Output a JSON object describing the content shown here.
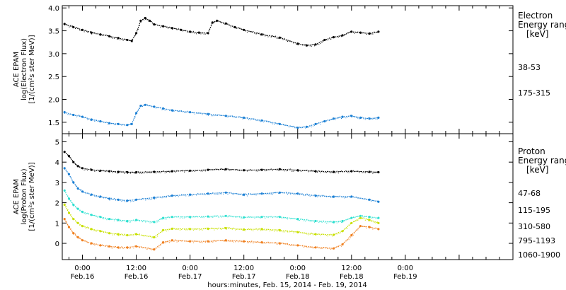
{
  "figure": {
    "xlabel": "hours:minutes, Feb. 15, 2014 - Feb. 19, 2014"
  },
  "chart_data": [
    {
      "type": "scatter",
      "panel": "electron",
      "ylabel_lines": [
        "ACE EPAM",
        "log(Electron Flux)",
        "[1/(cm²s ster MeV)]"
      ],
      "legend_title_lines": [
        "Electron",
        "Energy ranges"
      ],
      "legend_unit": "[keV]",
      "ylim": [
        1.25,
        4.05
      ],
      "yticks": [
        1.5,
        2.0,
        2.5,
        3.0,
        3.5,
        4.0
      ],
      "ytick_labels": [
        "1.5",
        "2.0",
        "2.5",
        "3.0",
        "3.5",
        "4.0"
      ],
      "xlim_hours": [
        -4.5,
        96
      ],
      "x_ticks": [
        {
          "hours": 0,
          "time": "0:00",
          "date": "Feb.16"
        },
        {
          "hours": 12,
          "time": "12:00",
          "date": "Feb.16"
        },
        {
          "hours": 24,
          "time": "0:00",
          "date": "Feb.17"
        },
        {
          "hours": 36,
          "time": "12:00",
          "date": "Feb.17"
        },
        {
          "hours": 48,
          "time": "0:00",
          "date": "Feb.18"
        },
        {
          "hours": 60,
          "time": "12:00",
          "date": "Feb.18"
        },
        {
          "hours": 72,
          "time": "0:00",
          "date": "Feb.19"
        }
      ],
      "series": [
        {
          "name": "38-53",
          "color": "#000000",
          "x": [
            -4,
            -2,
            0,
            2,
            4,
            6,
            8,
            10,
            11,
            12,
            13,
            14,
            15,
            16,
            18,
            20,
            22,
            24,
            26,
            28,
            29,
            30,
            32,
            34,
            36,
            40,
            44,
            48,
            50,
            52,
            54,
            56,
            58,
            60,
            62,
            64,
            66
          ],
          "y": [
            3.65,
            3.58,
            3.52,
            3.46,
            3.42,
            3.38,
            3.34,
            3.3,
            3.28,
            3.45,
            3.72,
            3.78,
            3.72,
            3.64,
            3.6,
            3.56,
            3.52,
            3.48,
            3.46,
            3.45,
            3.68,
            3.72,
            3.66,
            3.58,
            3.52,
            3.42,
            3.35,
            3.22,
            3.18,
            3.2,
            3.3,
            3.36,
            3.4,
            3.48,
            3.46,
            3.44,
            3.48
          ]
        },
        {
          "name": "175-315",
          "color": "#1a7fd4",
          "x": [
            -4,
            -2,
            0,
            2,
            4,
            6,
            8,
            10,
            11,
            12,
            13,
            14,
            16,
            18,
            20,
            24,
            28,
            32,
            36,
            40,
            44,
            48,
            50,
            52,
            54,
            56,
            58,
            60,
            62,
            64,
            66
          ],
          "y": [
            1.72,
            1.66,
            1.62,
            1.56,
            1.52,
            1.48,
            1.46,
            1.44,
            1.46,
            1.7,
            1.86,
            1.88,
            1.84,
            1.8,
            1.76,
            1.72,
            1.68,
            1.64,
            1.6,
            1.54,
            1.46,
            1.38,
            1.4,
            1.46,
            1.52,
            1.58,
            1.62,
            1.64,
            1.6,
            1.58,
            1.6
          ]
        }
      ]
    },
    {
      "type": "scatter",
      "panel": "proton",
      "ylabel_lines": [
        "ACE EPAM",
        "log(Proton Flux)",
        "[1/(cm²s ster MeV)]"
      ],
      "legend_title_lines": [
        "Proton",
        "Energy ranges"
      ],
      "legend_unit": "[keV]",
      "ylim": [
        -0.8,
        5.4
      ],
      "yticks": [
        0,
        1,
        2,
        3,
        4,
        5
      ],
      "ytick_labels": [
        "0",
        "1",
        "2",
        "3",
        "4",
        "5"
      ],
      "xlim_hours": [
        -4.5,
        96
      ],
      "series": [
        {
          "name": "47-68",
          "color": "#000000",
          "x": [
            -4,
            -3,
            -2,
            -1,
            0,
            2,
            4,
            6,
            8,
            10,
            12,
            16,
            20,
            24,
            28,
            32,
            36,
            40,
            44,
            48,
            52,
            56,
            60,
            64,
            66
          ],
          "y": [
            4.5,
            4.3,
            4.0,
            3.8,
            3.7,
            3.62,
            3.58,
            3.55,
            3.52,
            3.5,
            3.5,
            3.52,
            3.55,
            3.58,
            3.62,
            3.65,
            3.6,
            3.62,
            3.65,
            3.6,
            3.55,
            3.52,
            3.55,
            3.52,
            3.5
          ]
        },
        {
          "name": "115-195",
          "color": "#1a7fd4",
          "x": [
            -4,
            -3,
            -2,
            -1,
            0,
            2,
            4,
            6,
            8,
            10,
            12,
            16,
            20,
            24,
            28,
            32,
            36,
            40,
            44,
            48,
            52,
            56,
            60,
            64,
            66
          ],
          "y": [
            3.7,
            3.4,
            3.0,
            2.7,
            2.55,
            2.4,
            2.3,
            2.2,
            2.15,
            2.1,
            2.15,
            2.25,
            2.35,
            2.4,
            2.45,
            2.5,
            2.4,
            2.45,
            2.5,
            2.45,
            2.35,
            2.3,
            2.3,
            2.15,
            2.05
          ]
        },
        {
          "name": "310-580",
          "color": "#2ee0d0",
          "x": [
            -4,
            -3,
            -2,
            -1,
            0,
            2,
            4,
            6,
            8,
            10,
            12,
            16,
            18,
            20,
            24,
            28,
            32,
            36,
            40,
            44,
            48,
            52,
            56,
            58,
            60,
            62,
            64,
            66
          ],
          "y": [
            2.6,
            2.2,
            1.9,
            1.7,
            1.55,
            1.4,
            1.3,
            1.2,
            1.15,
            1.1,
            1.15,
            1.05,
            1.25,
            1.3,
            1.3,
            1.32,
            1.35,
            1.28,
            1.3,
            1.3,
            1.2,
            1.1,
            1.05,
            1.1,
            1.25,
            1.35,
            1.3,
            1.25
          ]
        },
        {
          "name": "795-1193",
          "color": "#c8e000",
          "x": [
            -4,
            -3,
            -2,
            -1,
            0,
            2,
            4,
            6,
            8,
            10,
            12,
            16,
            18,
            20,
            24,
            28,
            32,
            36,
            40,
            44,
            48,
            52,
            56,
            58,
            60,
            62,
            64,
            66
          ],
          "y": [
            1.9,
            1.5,
            1.2,
            1.0,
            0.85,
            0.7,
            0.6,
            0.5,
            0.45,
            0.4,
            0.45,
            0.3,
            0.65,
            0.72,
            0.7,
            0.72,
            0.75,
            0.68,
            0.7,
            0.65,
            0.55,
            0.45,
            0.42,
            0.6,
            1.0,
            1.25,
            1.15,
            1.0
          ]
        },
        {
          "name": "1060-1900",
          "color": "#f08020",
          "x": [
            -4,
            -3,
            -2,
            -1,
            0,
            2,
            4,
            6,
            8,
            10,
            12,
            16,
            18,
            20,
            24,
            28,
            32,
            36,
            40,
            44,
            48,
            52,
            56,
            58,
            60,
            62,
            64,
            66
          ],
          "y": [
            1.2,
            0.8,
            0.5,
            0.3,
            0.15,
            0.0,
            -0.1,
            -0.15,
            -0.2,
            -0.2,
            -0.15,
            -0.3,
            0.05,
            0.15,
            0.1,
            0.1,
            0.15,
            0.1,
            0.05,
            0.0,
            -0.1,
            -0.2,
            -0.25,
            -0.05,
            0.4,
            0.85,
            0.8,
            0.7
          ]
        }
      ]
    }
  ]
}
